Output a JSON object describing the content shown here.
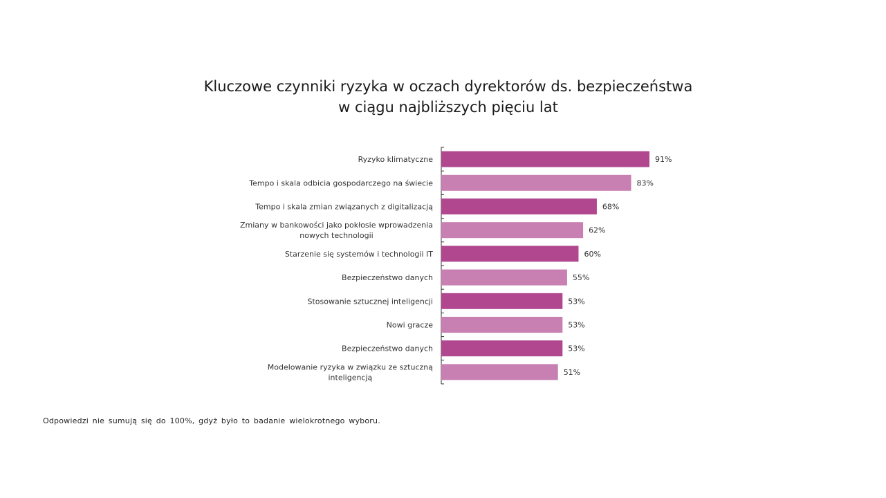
{
  "chart_data": {
    "type": "bar",
    "orientation": "horizontal",
    "title": [
      "Kluczowe czynniki ryzyka w oczach dyrektorów ds. bezpieczeństwa",
      "w ciągu najbliższych pięciu lat"
    ],
    "categories": [
      [
        "Ryzyko klimatyczne"
      ],
      [
        "Tempo i skala odbicia gospodarczego na świecie"
      ],
      [
        "Tempo i skala zmian związanych z digitalizacją"
      ],
      [
        "Zmiany w bankowości jako pokłosie wprowadzenia",
        "nowych technologii"
      ],
      [
        "Starzenie się systemów i technologii IT"
      ],
      [
        "Bezpieczeństwo danych"
      ],
      [
        "Stosowanie sztucznej inteligencji"
      ],
      [
        "Nowi gracze"
      ],
      [
        "Bezpieczeństwo danych"
      ],
      [
        "Modelowanie ryzyka w związku ze sztuczną",
        "inteligencją"
      ]
    ],
    "values": [
      91,
      83,
      68,
      62,
      60,
      55,
      53,
      53,
      53,
      51
    ],
    "data_labels": [
      "91%",
      "83%",
      "68%",
      "62%",
      "60%",
      "55%",
      "53%",
      "53%",
      "53%",
      "51%"
    ],
    "xlim": [
      0,
      100
    ],
    "grid": false,
    "colors": [
      "#b0478f",
      "#c87fb2"
    ]
  },
  "footnote": "Odpowiedzi nie sumują się do 100%, gdyż było to badanie wielokrotnego wyboru."
}
